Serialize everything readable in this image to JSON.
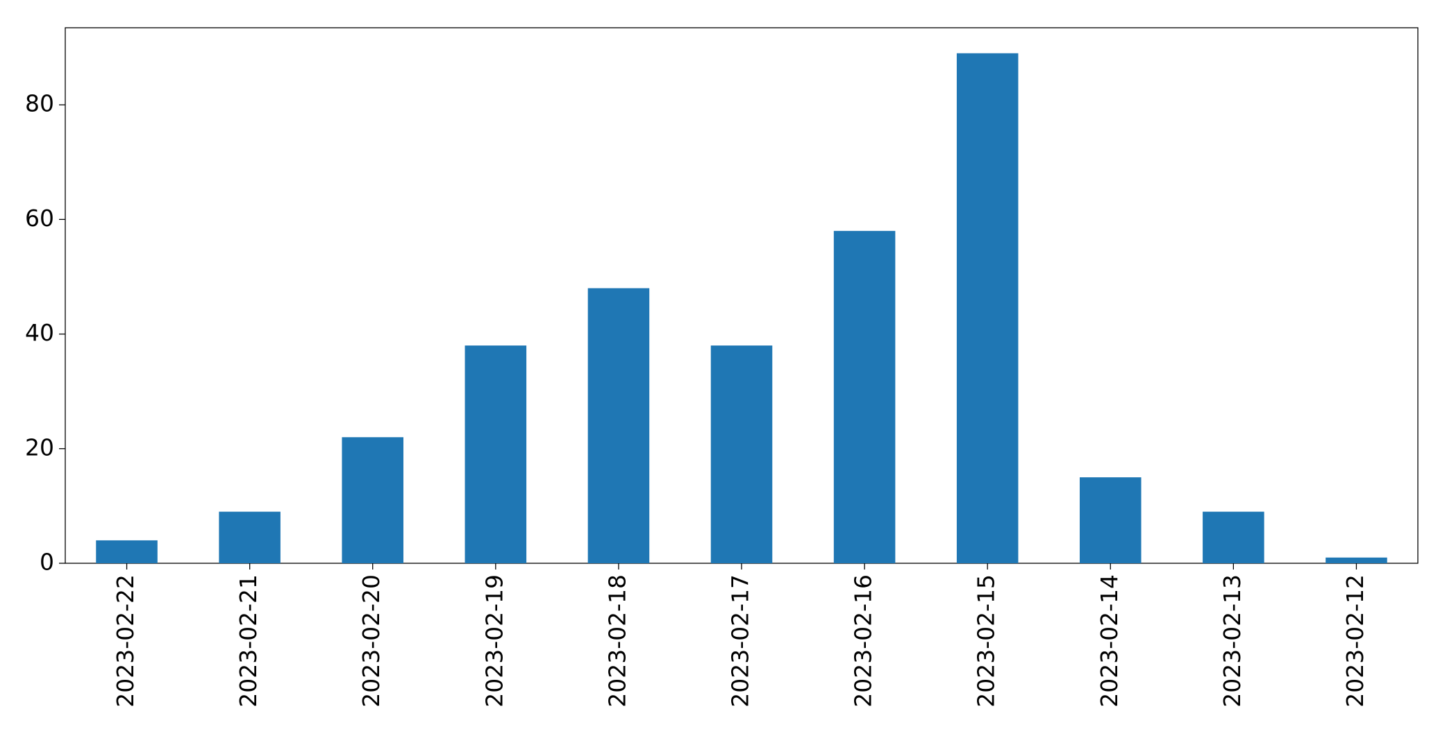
{
  "chart_data": {
    "type": "bar",
    "categories": [
      "2023-02-22",
      "2023-02-21",
      "2023-02-20",
      "2023-02-19",
      "2023-02-18",
      "2023-02-17",
      "2023-02-16",
      "2023-02-15",
      "2023-02-14",
      "2023-02-13",
      "2023-02-12"
    ],
    "values": [
      4,
      9,
      22,
      38,
      48,
      38,
      58,
      89,
      15,
      9,
      1
    ],
    "color": "#1f77b4",
    "ylim": [
      0,
      93.45
    ],
    "yticks": [
      0,
      20,
      40,
      60,
      80
    ],
    "grid": false
  }
}
